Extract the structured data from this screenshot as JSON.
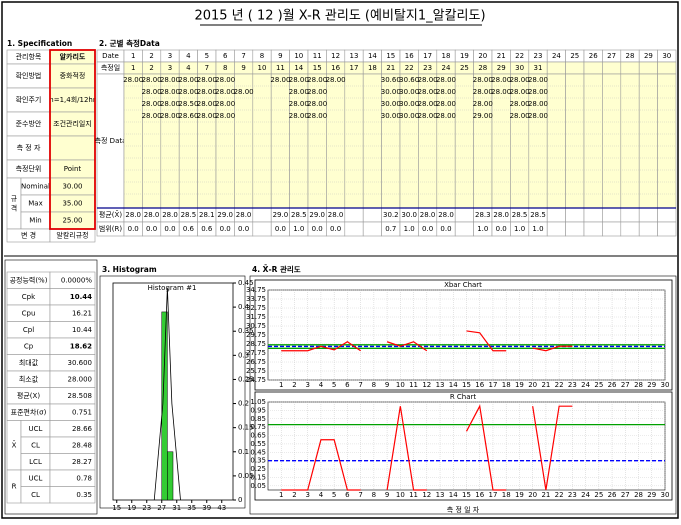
{
  "title": "2015 년 ( 12 )월 X-R 관리도 (예비탈지1_알칼리도)",
  "spec": {
    "heading": "1. Specification",
    "rows": [
      {
        "label": "관리항목",
        "value": "알카리도"
      },
      {
        "label": "확인방법",
        "value": "중화적정"
      },
      {
        "label": "확인주기",
        "value": "n=1,4회/12hr"
      },
      {
        "label": "준수방안",
        "value": "조건관리일지"
      },
      {
        "label": "측 정 자"
      },
      {
        "label": "측정단위",
        "value": "Point"
      }
    ],
    "limit_group": "규 격",
    "limits": [
      {
        "label": "Nominal",
        "value": "30.00"
      },
      {
        "label": "Max",
        "value": "35.00"
      },
      {
        "label": "Min",
        "value": "25.00"
      }
    ],
    "change": {
      "label": "변 경",
      "value": "알칼리규정"
    }
  },
  "measure": {
    "heading": "2. 군별 측정Data",
    "date_label": "Date",
    "dates": [
      1,
      2,
      3,
      4,
      5,
      6,
      7,
      8,
      9,
      10,
      11,
      12,
      13,
      14,
      15,
      16,
      17,
      18,
      19,
      20,
      21,
      22,
      23,
      24,
      25,
      26,
      27,
      28,
      29,
      30
    ],
    "day_label": "측정일",
    "days": [
      1,
      2,
      3,
      4,
      7,
      8,
      9,
      10,
      11,
      14,
      15,
      16,
      17,
      18,
      21,
      22,
      23,
      24,
      25,
      28,
      29,
      30,
      31
    ],
    "data_label": "측정 Data",
    "readings": [
      [
        "28.00",
        "28.00",
        "28.00",
        "28.00",
        "28.00",
        "28.00",
        null,
        null,
        "28.00",
        "28.00",
        "28.00",
        "28.00",
        null,
        null,
        "30.60",
        "30.60",
        "28.00",
        "28.00",
        null,
        "28.00",
        "28.00",
        "28.00",
        "28.00"
      ],
      [
        null,
        "28.00",
        "28.00",
        "28.00",
        "28.00",
        "28.00",
        "28.00",
        null,
        null,
        "28.00",
        "28.00",
        null,
        null,
        null,
        "30.00",
        "30.00",
        "28.00",
        "28.00",
        null,
        "28.00",
        "28.00",
        "28.00",
        "28.00"
      ],
      [
        null,
        "28.00",
        "28.00",
        "28.50",
        "28.00",
        "28.00",
        null,
        null,
        null,
        "28.00",
        "28.00",
        null,
        null,
        null,
        "30.00",
        "30.00",
        "28.00",
        "28.00",
        null,
        "28.00",
        null,
        "28.00",
        "28.00"
      ],
      [
        null,
        "28.00",
        "28.00",
        "28.60",
        "28.00",
        "28.00",
        null,
        null,
        null,
        "28.00",
        "28.00",
        null,
        null,
        null,
        "30.00",
        "30.00",
        "28.00",
        "28.00",
        null,
        "29.00",
        null,
        "28.00",
        "28.00"
      ]
    ],
    "mean_label": "평균(X̄)",
    "means": [
      "28.0",
      "28.0",
      "28.0",
      "28.5",
      "28.1",
      "29.0",
      "28.0",
      null,
      "29.0",
      "28.5",
      "29.0",
      "28.0",
      null,
      null,
      "30.2",
      "30.0",
      "28.0",
      "28.0",
      null,
      "28.3",
      "28.0",
      "28.5",
      "28.5"
    ],
    "range_label": "범위(R)",
    "ranges": [
      "0.0",
      "0.0",
      "0.0",
      "0.6",
      "0.6",
      "0.0",
      "0.0",
      null,
      "0.0",
      "1.0",
      "0.0",
      "0.0",
      null,
      null,
      "0.7",
      "1.0",
      "0.0",
      "0.0",
      null,
      "1.0",
      "0.0",
      "1.0",
      "1.0"
    ]
  },
  "stats": {
    "rows": [
      {
        "label": "공정능력(%)",
        "value": "0.0000%"
      },
      {
        "label": "Cpk",
        "value": "10.44"
      },
      {
        "label": "Cpu",
        "value": "16.21"
      },
      {
        "label": "Cpl",
        "value": "10.44"
      },
      {
        "label": "Cp",
        "value": "18.62"
      },
      {
        "label": "최대값",
        "value": "30.600"
      },
      {
        "label": "최소값",
        "value": "28.000"
      },
      {
        "label": "평균(X)",
        "value": "28.508"
      },
      {
        "label": "표준편차(σ)",
        "value": "0.751"
      }
    ],
    "xbar_group": "X̄",
    "xbar_rows": [
      {
        "label": "UCL",
        "value": "28.66"
      },
      {
        "label": "CL",
        "value": "28.48"
      },
      {
        "label": "LCL",
        "value": "28.27"
      }
    ],
    "r_group": "R",
    "r_rows": [
      {
        "label": "UCL",
        "value": "0.78"
      },
      {
        "label": "CL",
        "value": "0.35"
      }
    ]
  },
  "histogram_heading": "3. Histogram",
  "xr_heading": "4. X̄-R 관리도",
  "x_axis_label": "측 정 일 자",
  "chart_data": [
    {
      "type": "histogram",
      "title": "Histogram #1",
      "bins": [
        27,
        28.5,
        30
      ],
      "values": [
        0.39,
        0.1
      ],
      "color": "#33cc33",
      "xlim": [
        14,
        46
      ],
      "xticks": [
        15,
        19,
        23,
        27,
        31,
        35,
        39,
        43
      ],
      "ylim": [
        0,
        0.45
      ],
      "yticks": [
        0,
        0.05,
        0.1,
        0.15,
        0.2,
        0.25,
        0.3,
        0.35,
        0.4,
        0.45
      ]
    },
    {
      "type": "line",
      "title": "Xbar Chart",
      "x": [
        1,
        2,
        3,
        4,
        5,
        6,
        7,
        8,
        9,
        10,
        11,
        12,
        13,
        14,
        15,
        16,
        17,
        18,
        19,
        20,
        21,
        22,
        23,
        24,
        25,
        26,
        27,
        28,
        29,
        30
      ],
      "series": [
        {
          "color": "#ff0000",
          "values": [
            28.0,
            28.0,
            28.0,
            28.5,
            28.1,
            29.0,
            28.0,
            null,
            29.0,
            28.5,
            29.0,
            28.0,
            null,
            null,
            30.2,
            30.0,
            28.0,
            28.0,
            null,
            28.3,
            28.0,
            28.5,
            28.5,
            null,
            null,
            null,
            null,
            null,
            null,
            null
          ]
        }
      ],
      "control": [
        {
          "value": 28.66,
          "color": "#00a000"
        },
        {
          "value": 28.48,
          "color": "#0000ff",
          "dash": true
        },
        {
          "value": 28.27,
          "color": "#00a000"
        }
      ],
      "xlim": [
        0,
        30
      ],
      "ylim": [
        24.75,
        34.75
      ],
      "yticks": [
        24.75,
        25.75,
        26.75,
        27.75,
        28.75,
        29.75,
        30.75,
        31.75,
        32.75,
        33.75,
        34.75
      ]
    },
    {
      "type": "line",
      "title": "R Chart",
      "x": [
        1,
        2,
        3,
        4,
        5,
        6,
        7,
        8,
        9,
        10,
        11,
        12,
        13,
        14,
        15,
        16,
        17,
        18,
        19,
        20,
        21,
        22,
        23,
        24,
        25,
        26,
        27,
        28,
        29,
        30
      ],
      "series": [
        {
          "color": "#ff0000",
          "values": [
            0,
            0,
            0,
            0.6,
            0.6,
            0,
            0,
            null,
            0,
            1.0,
            0,
            0,
            null,
            null,
            0.7,
            1.0,
            0,
            0,
            null,
            1.0,
            0,
            1.0,
            1.0,
            null,
            null,
            null,
            null,
            null,
            null,
            null
          ]
        }
      ],
      "control": [
        {
          "value": 0.78,
          "color": "#00a000"
        },
        {
          "value": 0.35,
          "color": "#0000ff",
          "dash": true
        }
      ],
      "xlim": [
        0,
        30
      ],
      "ylim": [
        0,
        1.05
      ],
      "yticks": [
        0.05,
        0.15,
        0.25,
        0.35,
        0.45,
        0.55,
        0.65,
        0.75,
        0.85,
        0.95,
        1.05
      ]
    }
  ]
}
